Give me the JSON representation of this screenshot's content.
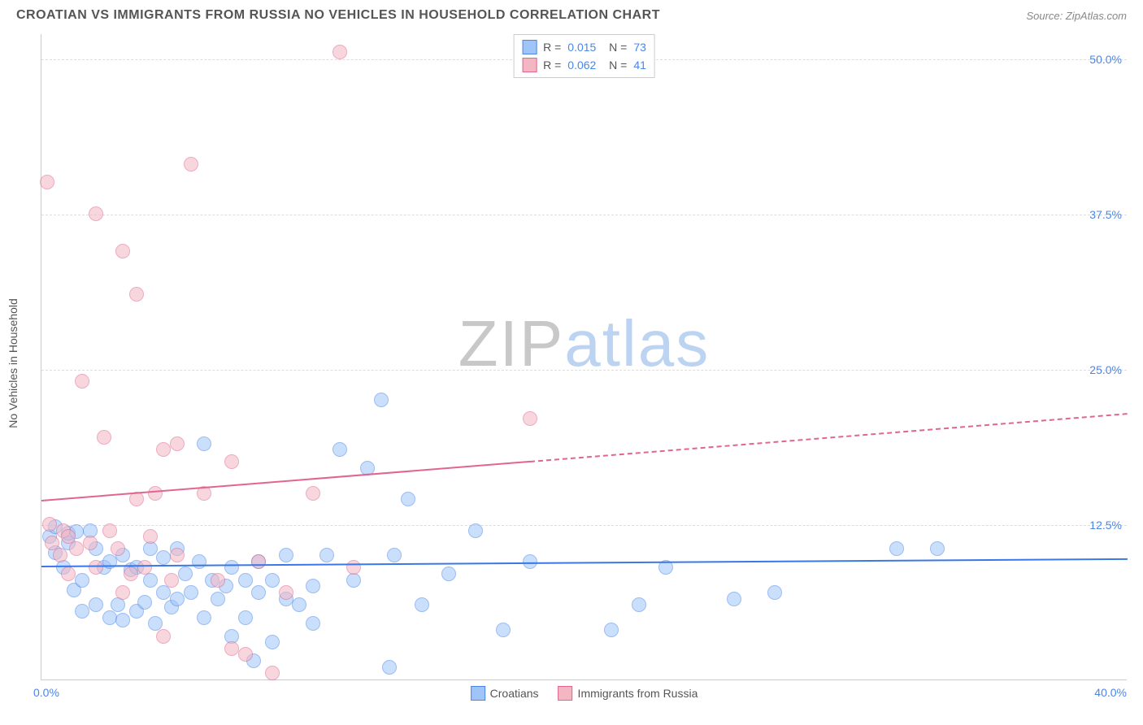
{
  "header": {
    "title": "CROATIAN VS IMMIGRANTS FROM RUSSIA NO VEHICLES IN HOUSEHOLD CORRELATION CHART",
    "source": "Source: ZipAtlas.com"
  },
  "chart": {
    "type": "scatter",
    "ylabel": "No Vehicles in Household",
    "xlim": [
      0,
      40
    ],
    "ylim": [
      0,
      52
    ],
    "xtick_labels": {
      "min": "0.0%",
      "max": "40.0%"
    },
    "ytick_labels": [
      "12.5%",
      "25.0%",
      "37.5%",
      "50.0%"
    ],
    "ytick_values": [
      12.5,
      25.0,
      37.5,
      50.0
    ],
    "grid_color": "#dddddd",
    "axis_color": "#cccccc",
    "background_color": "#ffffff",
    "marker_radius": 9,
    "marker_opacity": 0.55,
    "watermark": {
      "part1": "ZIP",
      "part2": "atlas"
    },
    "legend_top": [
      {
        "swatch_fill": "#9fc5f8",
        "swatch_border": "#4a86e8",
        "R": "0.015",
        "N": "73"
      },
      {
        "swatch_fill": "#f4b6c2",
        "swatch_border": "#e06690",
        "R": "0.062",
        "N": "41"
      }
    ],
    "legend_bottom": [
      {
        "label": "Croatians",
        "swatch_fill": "#9fc5f8",
        "swatch_border": "#4a86e8"
      },
      {
        "label": "Immigrants from Russia",
        "swatch_fill": "#f4b6c2",
        "swatch_border": "#e06690"
      }
    ],
    "series": [
      {
        "name": "Croatians",
        "fill": "#9fc5f8",
        "stroke": "#4a86e8",
        "trend": {
          "y_at_x0": 9.2,
          "y_at_xmax": 9.8,
          "solid_until_x": 40,
          "color": "#3b78e7"
        },
        "points": [
          [
            0.3,
            11.5
          ],
          [
            0.5,
            10.2
          ],
          [
            0.5,
            12.3
          ],
          [
            0.8,
            9.0
          ],
          [
            1.0,
            11.0
          ],
          [
            1.0,
            11.8
          ],
          [
            1.2,
            7.2
          ],
          [
            1.3,
            11.9
          ],
          [
            1.5,
            8.0
          ],
          [
            1.5,
            5.5
          ],
          [
            1.8,
            12.0
          ],
          [
            2.0,
            10.5
          ],
          [
            2.0,
            6.0
          ],
          [
            2.3,
            9.0
          ],
          [
            2.5,
            5.0
          ],
          [
            2.5,
            9.5
          ],
          [
            2.8,
            6.0
          ],
          [
            3.0,
            10.0
          ],
          [
            3.0,
            4.8
          ],
          [
            3.3,
            8.8
          ],
          [
            3.5,
            5.5
          ],
          [
            3.5,
            9.0
          ],
          [
            3.8,
            6.2
          ],
          [
            4.0,
            8.0
          ],
          [
            4.0,
            10.5
          ],
          [
            4.2,
            4.5
          ],
          [
            4.5,
            7.0
          ],
          [
            4.5,
            9.8
          ],
          [
            4.8,
            5.8
          ],
          [
            5.0,
            10.5
          ],
          [
            5.0,
            6.5
          ],
          [
            5.3,
            8.5
          ],
          [
            5.5,
            7.0
          ],
          [
            5.8,
            9.5
          ],
          [
            6.0,
            5.0
          ],
          [
            6.0,
            19.0
          ],
          [
            6.3,
            8.0
          ],
          [
            6.5,
            6.5
          ],
          [
            6.8,
            7.5
          ],
          [
            7.0,
            9.0
          ],
          [
            7.0,
            3.5
          ],
          [
            7.5,
            8.0
          ],
          [
            7.5,
            5.0
          ],
          [
            7.8,
            1.5
          ],
          [
            8.0,
            7.0
          ],
          [
            8.0,
            9.5
          ],
          [
            8.5,
            8.0
          ],
          [
            8.5,
            3.0
          ],
          [
            9.0,
            6.5
          ],
          [
            9.0,
            10.0
          ],
          [
            9.5,
            6.0
          ],
          [
            10.0,
            7.5
          ],
          [
            10.0,
            4.5
          ],
          [
            10.5,
            10.0
          ],
          [
            11.0,
            18.5
          ],
          [
            11.5,
            8.0
          ],
          [
            12.0,
            17.0
          ],
          [
            12.5,
            22.5
          ],
          [
            12.8,
            1.0
          ],
          [
            13.0,
            10.0
          ],
          [
            13.5,
            14.5
          ],
          [
            14.0,
            6.0
          ],
          [
            15.0,
            8.5
          ],
          [
            16.0,
            12.0
          ],
          [
            17.0,
            4.0
          ],
          [
            18.0,
            9.5
          ],
          [
            21.0,
            4.0
          ],
          [
            22.0,
            6.0
          ],
          [
            23.0,
            9.0
          ],
          [
            25.5,
            6.5
          ],
          [
            27.0,
            7.0
          ],
          [
            31.5,
            10.5
          ],
          [
            33.0,
            10.5
          ]
        ]
      },
      {
        "name": "Immigrants from Russia",
        "fill": "#f4b6c2",
        "stroke": "#e06690",
        "trend": {
          "y_at_x0": 14.5,
          "y_at_xmax": 21.5,
          "solid_until_x": 18,
          "color": "#e06690"
        },
        "points": [
          [
            0.2,
            40.0
          ],
          [
            0.3,
            12.5
          ],
          [
            0.4,
            11.0
          ],
          [
            0.7,
            10.0
          ],
          [
            0.8,
            12.0
          ],
          [
            1.0,
            11.5
          ],
          [
            1.0,
            8.5
          ],
          [
            1.3,
            10.5
          ],
          [
            1.5,
            24.0
          ],
          [
            1.8,
            11.0
          ],
          [
            2.0,
            37.5
          ],
          [
            2.0,
            9.0
          ],
          [
            2.3,
            19.5
          ],
          [
            2.5,
            12.0
          ],
          [
            2.8,
            10.5
          ],
          [
            3.0,
            34.5
          ],
          [
            3.0,
            7.0
          ],
          [
            3.3,
            8.5
          ],
          [
            3.5,
            31.0
          ],
          [
            3.5,
            14.5
          ],
          [
            3.8,
            9.0
          ],
          [
            4.0,
            11.5
          ],
          [
            4.2,
            15.0
          ],
          [
            4.5,
            3.5
          ],
          [
            4.5,
            18.5
          ],
          [
            4.8,
            8.0
          ],
          [
            5.0,
            10.0
          ],
          [
            5.0,
            19.0
          ],
          [
            5.5,
            41.5
          ],
          [
            6.0,
            15.0
          ],
          [
            6.5,
            8.0
          ],
          [
            7.0,
            2.5
          ],
          [
            7.0,
            17.5
          ],
          [
            7.5,
            2.0
          ],
          [
            8.0,
            9.5
          ],
          [
            8.5,
            0.5
          ],
          [
            9.0,
            7.0
          ],
          [
            10.0,
            15.0
          ],
          [
            11.0,
            50.5
          ],
          [
            11.5,
            9.0
          ],
          [
            18.0,
            21.0
          ]
        ]
      }
    ]
  }
}
